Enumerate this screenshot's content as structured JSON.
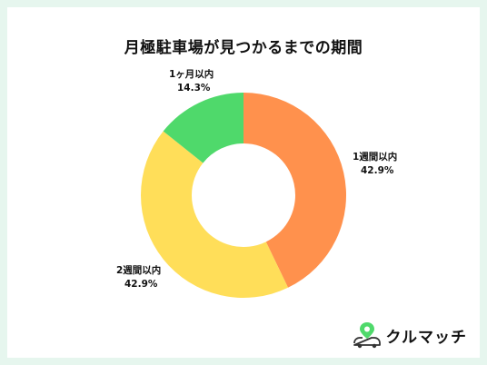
{
  "chart_data": {
    "type": "pie",
    "donut": true,
    "title": "月極駐車場が見つかるまでの期間",
    "categories": [
      "1週間以内",
      "2週間以内",
      "1ヶ月以内"
    ],
    "values": [
      42.9,
      42.9,
      14.3
    ],
    "data_labels": [
      "42.9%",
      "42.9%",
      "14.3%"
    ],
    "colors": [
      "#ff914d",
      "#ffde59",
      "#4fd96b"
    ],
    "start_angle": "12 o'clock, clockwise",
    "legend": "none"
  },
  "branding": {
    "logo_text": "クルマッチ",
    "logo_icon": "car-location-pin-icon",
    "accent": "#4fd96b"
  },
  "background": "#e6f6ee"
}
